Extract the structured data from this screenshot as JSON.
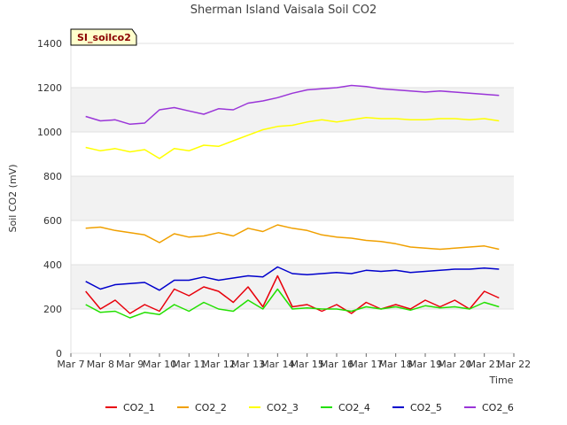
{
  "chart_data": {
    "type": "line",
    "title": "Sherman Island Vaisala Soil CO2",
    "xlabel": "Time",
    "ylabel": "Soil CO2 (mV)",
    "ylim": [
      0,
      1400
    ],
    "yticks": [
      0,
      200,
      400,
      600,
      800,
      1000,
      1200,
      1400
    ],
    "xlim": [
      0,
      15
    ],
    "xtick_labels": [
      "Mar 7",
      "Mar 8",
      "Mar 9",
      "Mar 10",
      "Mar 11",
      "Mar 12",
      "Mar 13",
      "Mar 14",
      "Mar 15",
      "Mar 16",
      "Mar 17",
      "Mar 18",
      "Mar 19",
      "Mar 20",
      "Mar 21",
      "Mar 22"
    ],
    "grid": "horizontal bands",
    "legend_position": "bottom",
    "badge": "SI_soilco2",
    "x": [
      0.5,
      1,
      1.5,
      2,
      2.5,
      3,
      3.5,
      4,
      4.5,
      5,
      5.5,
      6,
      6.5,
      7,
      7.5,
      8,
      8.5,
      9,
      9.5,
      10,
      10.5,
      11,
      11.5,
      12,
      12.5,
      13,
      13.5,
      14,
      14.5
    ],
    "series": [
      {
        "name": "CO2_1",
        "color": "#e8000b",
        "values": [
          280,
          200,
          240,
          180,
          220,
          190,
          290,
          260,
          300,
          280,
          230,
          300,
          210,
          350,
          210,
          220,
          190,
          220,
          180,
          230,
          200,
          220,
          200,
          240,
          210,
          240,
          200,
          280,
          250
        ]
      },
      {
        "name": "CO2_2",
        "color": "#f0a000",
        "values": [
          565,
          570,
          555,
          545,
          535,
          500,
          540,
          525,
          530,
          545,
          530,
          565,
          550,
          580,
          565,
          555,
          535,
          525,
          520,
          510,
          505,
          495,
          480,
          475,
          470,
          475,
          480,
          485,
          470
        ]
      },
      {
        "name": "CO2_3",
        "color": "#ffff00",
        "values": [
          930,
          915,
          925,
          910,
          920,
          880,
          925,
          915,
          940,
          935,
          960,
          985,
          1010,
          1025,
          1030,
          1045,
          1055,
          1045,
          1055,
          1065,
          1060,
          1060,
          1055,
          1055,
          1060,
          1060,
          1055,
          1060,
          1050
        ]
      },
      {
        "name": "CO2_4",
        "color": "#22e000",
        "values": [
          220,
          185,
          190,
          160,
          185,
          175,
          220,
          190,
          230,
          200,
          190,
          240,
          200,
          290,
          200,
          205,
          200,
          200,
          190,
          210,
          200,
          210,
          195,
          215,
          205,
          210,
          200,
          230,
          210
        ]
      },
      {
        "name": "CO2_5",
        "color": "#0000cc",
        "values": [
          325,
          290,
          310,
          315,
          320,
          285,
          330,
          330,
          345,
          330,
          340,
          350,
          345,
          390,
          360,
          355,
          360,
          365,
          360,
          375,
          370,
          375,
          365,
          370,
          375,
          380,
          380,
          385,
          380
        ]
      },
      {
        "name": "CO2_6",
        "color": "#9a35d8",
        "values": [
          1070,
          1050,
          1055,
          1035,
          1040,
          1100,
          1110,
          1095,
          1080,
          1105,
          1100,
          1130,
          1140,
          1155,
          1175,
          1190,
          1195,
          1200,
          1210,
          1205,
          1195,
          1190,
          1185,
          1180,
          1185,
          1180,
          1175,
          1170,
          1165
        ]
      }
    ]
  }
}
